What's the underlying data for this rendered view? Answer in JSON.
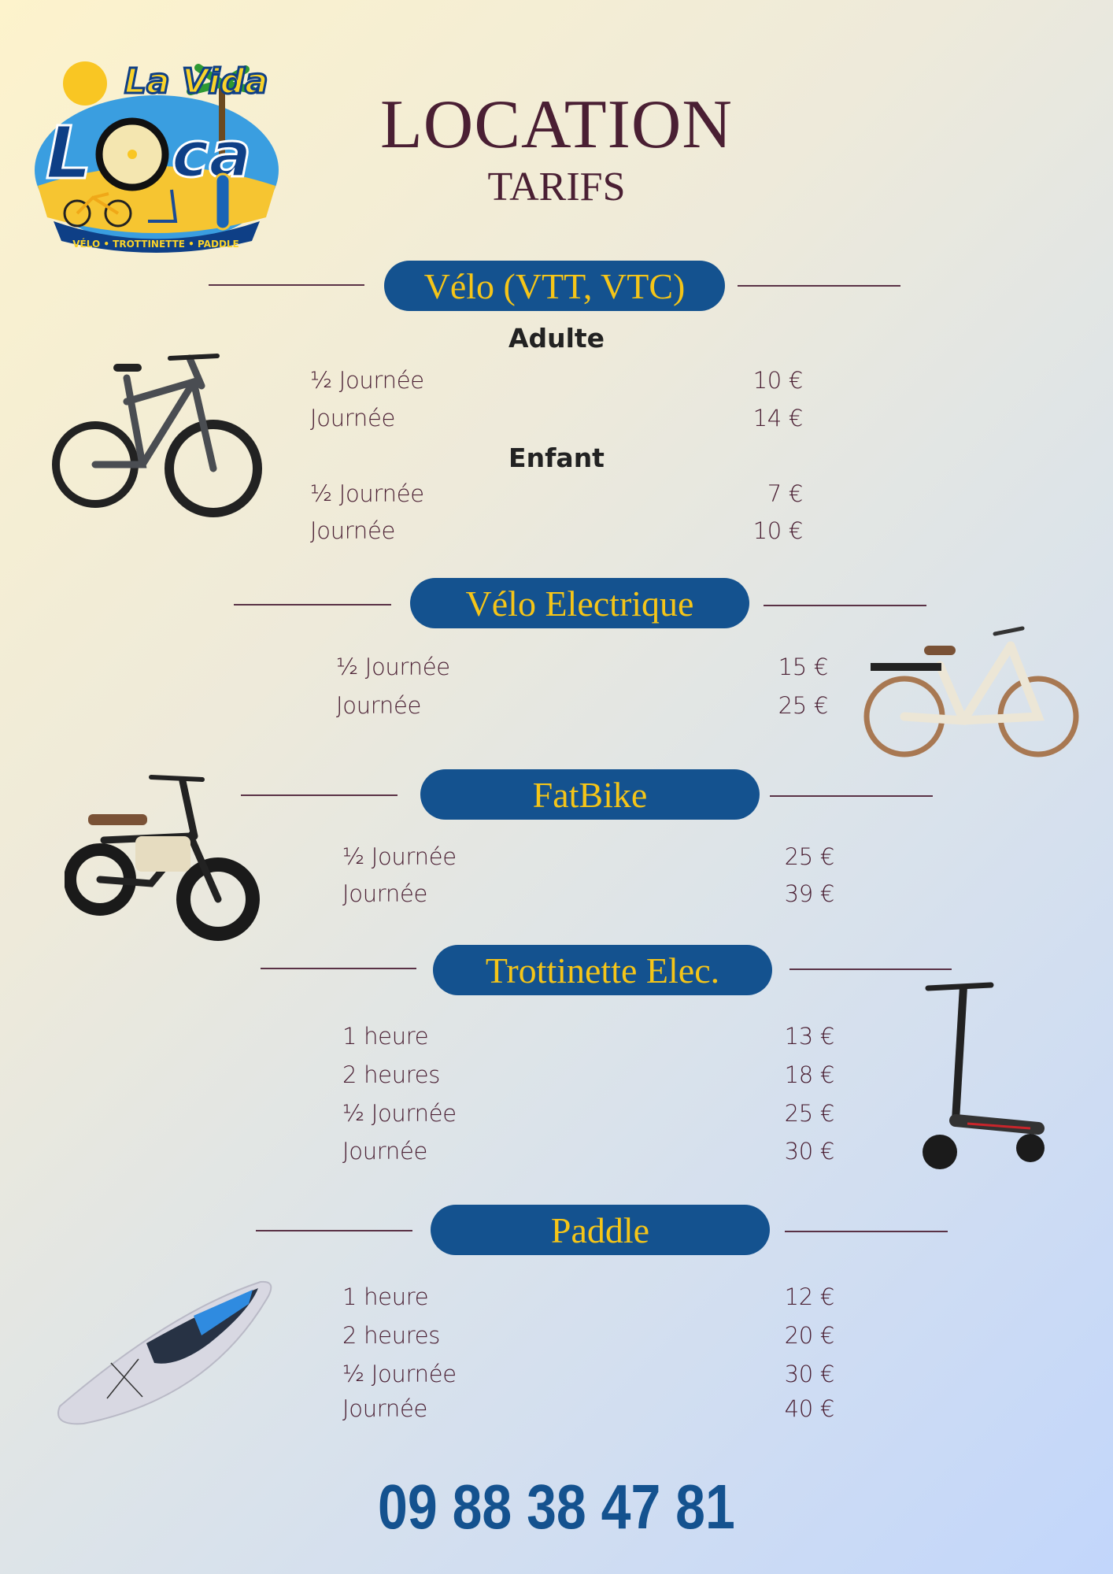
{
  "logo": {
    "text_top": "La Vida",
    "text_main": "Loca",
    "tagline": "VÉLO • TROTTINETTE • PADDLE"
  },
  "header": {
    "title": "LOCATION",
    "subtitle": "TARIFS"
  },
  "colors": {
    "pill": "#14528f",
    "pill_text": "#f5c518",
    "text": "#4a1f33",
    "phone": "#14528f"
  },
  "sections": [
    {
      "title": "Vélo (VTT, VTC)",
      "image": "mountain-bike",
      "groups": [
        {
          "label": "Adulte",
          "rows": [
            {
              "label": "½ Journée",
              "price": "10 €"
            },
            {
              "label": "Journée",
              "price": "14 €"
            }
          ]
        },
        {
          "label": "Enfant",
          "rows": [
            {
              "label": "½ Journée",
              "price": "7 €"
            },
            {
              "label": "Journée",
              "price": "10 €"
            }
          ]
        }
      ]
    },
    {
      "title": "Vélo Electrique",
      "image": "city-e-bike",
      "rows": [
        {
          "label": "½ Journée",
          "price": "15 €"
        },
        {
          "label": "Journée",
          "price": "25 €"
        }
      ]
    },
    {
      "title": "FatBike",
      "image": "fat-bike",
      "rows": [
        {
          "label": "½ Journée",
          "price": "25 €"
        },
        {
          "label": "Journée",
          "price": "39 €"
        }
      ]
    },
    {
      "title": "Trottinette Elec.",
      "image": "e-scooter",
      "rows": [
        {
          "label": "1 heure",
          "price": "13 €"
        },
        {
          "label": "2 heures",
          "price": "18 €"
        },
        {
          "label": "½ Journée",
          "price": "25 €"
        },
        {
          "label": "Journée",
          "price": "30 €"
        }
      ]
    },
    {
      "title": "Paddle",
      "image": "paddle-board",
      "rows": [
        {
          "label": "1 heure",
          "price": "12 €"
        },
        {
          "label": "2 heures",
          "price": "20 €"
        },
        {
          "label": "½ Journée",
          "price": "30 €"
        },
        {
          "label": "Journée",
          "price": "40 €"
        }
      ]
    }
  ],
  "phone": "09 88 38 47 81"
}
